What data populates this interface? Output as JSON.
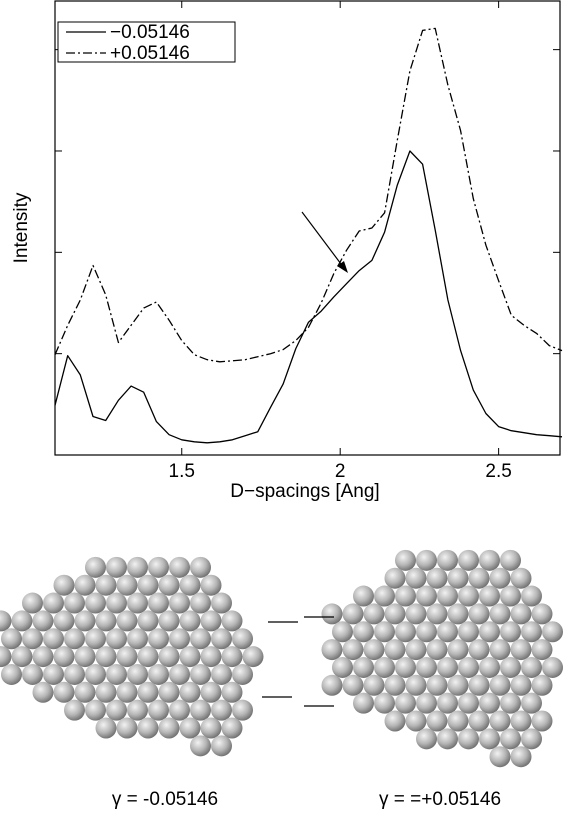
{
  "chart_data": {
    "type": "line",
    "x_label": "D−spacings [Ang]",
    "y_label": "Intensity",
    "x": [
      1.1,
      1.14,
      1.18,
      1.22,
      1.26,
      1.3,
      1.34,
      1.38,
      1.42,
      1.46,
      1.5,
      1.54,
      1.58,
      1.62,
      1.66,
      1.7,
      1.74,
      1.78,
      1.82,
      1.86,
      1.9,
      1.94,
      1.98,
      2.02,
      2.06,
      2.1,
      2.14,
      2.18,
      2.22,
      2.26,
      2.3,
      2.34,
      2.38,
      2.42,
      2.46,
      2.5,
      2.54,
      2.58,
      2.62,
      2.66,
      2.7
    ],
    "series": [
      {
        "name": "−0.05146",
        "color": "#000000",
        "dash": "solid",
        "values": [
          0.49,
          0.98,
          0.79,
          0.38,
          0.34,
          0.54,
          0.68,
          0.62,
          0.33,
          0.2,
          0.15,
          0.13,
          0.12,
          0.13,
          0.15,
          0.19,
          0.23,
          0.47,
          0.7,
          1.05,
          1.31,
          1.42,
          1.56,
          1.69,
          1.82,
          1.92,
          2.2,
          2.66,
          3.0,
          2.87,
          2.22,
          1.53,
          1.03,
          0.64,
          0.41,
          0.28,
          0.24,
          0.22,
          0.2,
          0.19,
          0.18
        ]
      },
      {
        "name": "+0.05146",
        "color": "#000000",
        "dash": "dashdot",
        "values": [
          0.99,
          1.28,
          1.53,
          1.87,
          1.58,
          1.11,
          1.28,
          1.45,
          1.51,
          1.33,
          1.13,
          0.99,
          0.94,
          0.92,
          0.93,
          0.94,
          0.97,
          1.0,
          1.04,
          1.13,
          1.26,
          1.5,
          1.79,
          2.02,
          2.21,
          2.24,
          2.39,
          3.1,
          3.79,
          4.19,
          4.21,
          3.65,
          3.2,
          2.53,
          2.07,
          1.72,
          1.38,
          1.28,
          1.2,
          1.08,
          1.03
        ]
      }
    ],
    "xlim": [
      1.1,
      2.7
    ],
    "xticks": [
      1.5,
      2,
      2.5
    ],
    "ylim": [
      0,
      4.48
    ],
    "yticks": [
      1,
      2,
      3,
      4
    ],
    "grid": false,
    "legend": "upper-left",
    "captions": [
      "γ = -0.05146",
      "γ = =+0.05146"
    ]
  }
}
